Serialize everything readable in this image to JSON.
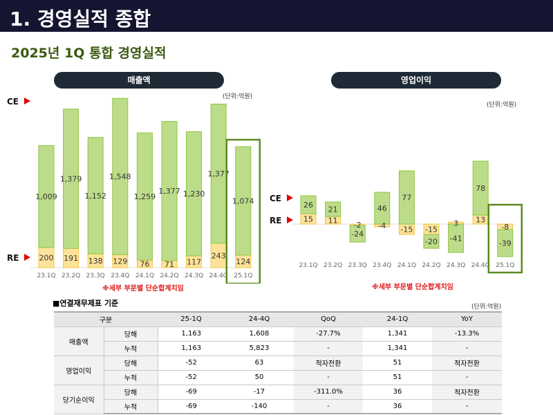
{
  "header": {
    "title": "1. 경영실적 종합",
    "subtitle": "2025년 1Q 통합 경영실적"
  },
  "colors": {
    "ce": "#bddc8a",
    "ce_border": "#8dc63f",
    "re": "#fde39a",
    "re_border": "#f5c342",
    "highlight": "#5a8a1e",
    "arrow": "#e00000"
  },
  "labels": {
    "ce": "CE",
    "re": "RE",
    "unit": "(단위:억원)",
    "note": "※세부 부문별 단순합계치임"
  },
  "chart_data": [
    {
      "type": "bar",
      "stacked": true,
      "title": "매출액",
      "categories": [
        "23.1Q",
        "23.2Q",
        "23.3Q",
        "23.4Q",
        "24.1Q",
        "24.2Q",
        "24.3Q",
        "24.4Q",
        "25.1Q"
      ],
      "series": [
        {
          "name": "RE",
          "values": [
            200,
            191,
            138,
            129,
            76,
            71,
            117,
            243,
            124
          ]
        },
        {
          "name": "CE",
          "values": [
            1009,
            1379,
            1152,
            1548,
            1259,
            1377,
            1230,
            1377,
            1074
          ]
        }
      ],
      "highlight": "25.1Q",
      "display": {
        "RE": [
          "200",
          "191",
          "138",
          "129",
          "76",
          "71",
          "117",
          "243",
          "124"
        ],
        "CE": [
          "1,009",
          "1,379",
          "1,152",
          "1,548",
          "1,259",
          "1,377",
          "1,230",
          "1,377",
          "1,074"
        ]
      }
    },
    {
      "type": "bar",
      "stacked": true,
      "title": "영업이익",
      "categories": [
        "23.1Q",
        "23.2Q",
        "23.3Q",
        "23.4Q",
        "24.1Q",
        "24.2Q",
        "24.3Q",
        "24.4Q",
        "25.1Q"
      ],
      "series": [
        {
          "name": "RE",
          "values": [
            15,
            11,
            -2,
            -4,
            -15,
            -15,
            3,
            13,
            -8
          ]
        },
        {
          "name": "CE",
          "values": [
            26,
            21,
            -24,
            46,
            77,
            -20,
            -41,
            78,
            -39
          ]
        }
      ],
      "highlight": "25.1Q"
    }
  ],
  "table": {
    "title": "■연결재무제표 기준",
    "unit": "(단위:억원)",
    "headers": [
      "구분",
      "25-1Q",
      "24-4Q",
      "QoQ",
      "24-1Q",
      "YoY"
    ],
    "groups": [
      {
        "name": "매출액",
        "rows": [
          {
            "type": "당해",
            "values": [
              "1,163",
              "1,608",
              "-27.7%",
              "1,341",
              "-13.3%"
            ]
          },
          {
            "type": "누적",
            "values": [
              "1,163",
              "5,823",
              "-",
              "1,341",
              "-"
            ]
          }
        ]
      },
      {
        "name": "영업이익",
        "rows": [
          {
            "type": "당해",
            "values": [
              "-52",
              "63",
              "적자전환",
              "51",
              "적자전환"
            ]
          },
          {
            "type": "누적",
            "values": [
              "-52",
              "50",
              "-",
              "51",
              "-"
            ]
          }
        ]
      },
      {
        "name": "당기순이익",
        "rows": [
          {
            "type": "당해",
            "values": [
              "-69",
              "-17",
              "-311.0%",
              "36",
              "적자전환"
            ]
          },
          {
            "type": "누적",
            "values": [
              "-69",
              "-140",
              "-",
              "36",
              "-"
            ]
          }
        ]
      }
    ]
  }
}
